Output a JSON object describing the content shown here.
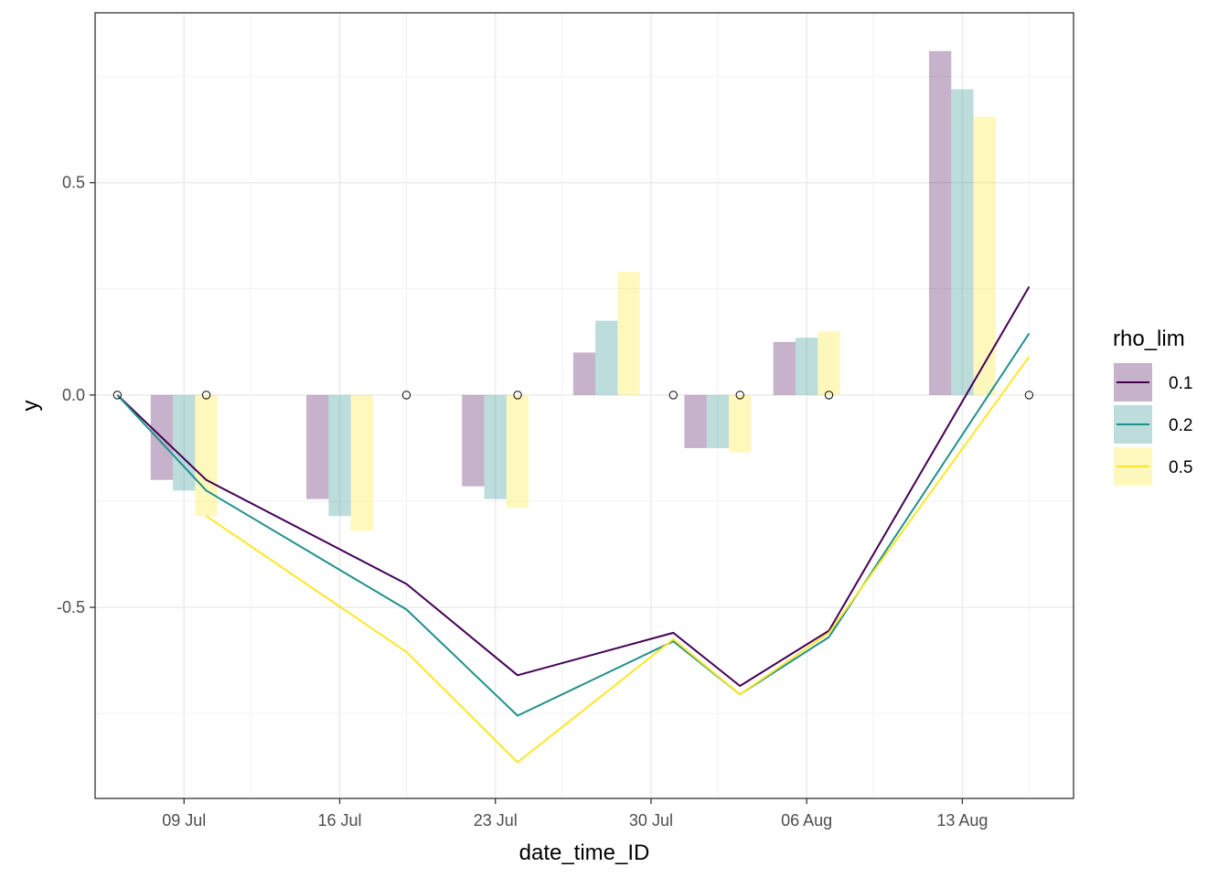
{
  "chart_data": {
    "type": "bar+line",
    "xlabel": "date_time_ID",
    "ylabel": "y",
    "x_axis": {
      "type": "date",
      "range": [
        "2024-07-05",
        "2024-08-18"
      ],
      "ticks": [
        {
          "date": "2024-07-09",
          "label": "09 Jul"
        },
        {
          "date": "2024-07-16",
          "label": "16 Jul"
        },
        {
          "date": "2024-07-23",
          "label": "23 Jul"
        },
        {
          "date": "2024-07-30",
          "label": "30 Jul"
        },
        {
          "date": "2024-08-06",
          "label": "06 Aug"
        },
        {
          "date": "2024-08-13",
          "label": "13 Aug"
        }
      ]
    },
    "y_axis": {
      "range": [
        -0.95,
        0.9
      ],
      "ticks": [
        {
          "value": 0.5,
          "label": "0.5"
        },
        {
          "value": 0.0,
          "label": "0.0"
        },
        {
          "value": -0.5,
          "label": "-0.5"
        }
      ],
      "minor": [
        -0.75,
        -0.25,
        0.25,
        0.75
      ]
    },
    "grid": true,
    "legend": {
      "title": "rho_lim",
      "position": "right",
      "items": [
        {
          "label": "0.1",
          "color": "#440154"
        },
        {
          "label": "0.2",
          "color": "#21908C"
        },
        {
          "label": "0.5",
          "color": "#FDE725"
        }
      ]
    },
    "series": [
      {
        "name": "0.1",
        "color": "#440154",
        "bars": [
          {
            "date": "2024-07-08",
            "value": -0.2
          },
          {
            "date": "2024-07-15",
            "value": -0.245
          },
          {
            "date": "2024-07-22",
            "value": -0.215
          },
          {
            "date": "2024-07-27",
            "value": 0.1
          },
          {
            "date": "2024-08-01",
            "value": -0.125
          },
          {
            "date": "2024-08-05",
            "value": 0.125
          },
          {
            "date": "2024-08-12",
            "value": 0.81
          }
        ],
        "line": [
          {
            "date": "2024-07-06",
            "value": 0.0
          },
          {
            "date": "2024-07-10",
            "value": -0.2
          },
          {
            "date": "2024-07-19",
            "value": -0.445
          },
          {
            "date": "2024-07-24",
            "value": -0.66
          },
          {
            "date": "2024-07-31",
            "value": -0.56
          },
          {
            "date": "2024-08-03",
            "value": -0.685
          },
          {
            "date": "2024-08-07",
            "value": -0.555
          },
          {
            "date": "2024-08-16",
            "value": 0.255
          }
        ]
      },
      {
        "name": "0.2",
        "color": "#21908C",
        "bars": [
          {
            "date": "2024-07-09",
            "value": -0.225
          },
          {
            "date": "2024-07-16",
            "value": -0.285
          },
          {
            "date": "2024-07-23",
            "value": -0.245
          },
          {
            "date": "2024-07-28",
            "value": 0.175
          },
          {
            "date": "2024-08-02",
            "value": -0.125
          },
          {
            "date": "2024-08-06",
            "value": 0.135
          },
          {
            "date": "2024-08-13",
            "value": 0.72
          }
        ],
        "line": [
          {
            "date": "2024-07-06",
            "value": 0.0
          },
          {
            "date": "2024-07-10",
            "value": -0.225
          },
          {
            "date": "2024-07-19",
            "value": -0.505
          },
          {
            "date": "2024-07-24",
            "value": -0.755
          },
          {
            "date": "2024-07-31",
            "value": -0.58
          },
          {
            "date": "2024-08-03",
            "value": -0.705
          },
          {
            "date": "2024-08-07",
            "value": -0.57
          },
          {
            "date": "2024-08-16",
            "value": 0.145
          }
        ]
      },
      {
        "name": "0.5",
        "color": "#FDE725",
        "bars": [
          {
            "date": "2024-07-10",
            "value": -0.285
          },
          {
            "date": "2024-07-17",
            "value": -0.32
          },
          {
            "date": "2024-07-24",
            "value": -0.265
          },
          {
            "date": "2024-07-29",
            "value": 0.29
          },
          {
            "date": "2024-08-03",
            "value": -0.135
          },
          {
            "date": "2024-08-07",
            "value": 0.15
          },
          {
            "date": "2024-08-14",
            "value": 0.655
          }
        ],
        "line": [
          {
            "date": "2024-07-10",
            "value": -0.285
          },
          {
            "date": "2024-07-19",
            "value": -0.605
          },
          {
            "date": "2024-07-24",
            "value": -0.865
          },
          {
            "date": "2024-07-31",
            "value": -0.575
          },
          {
            "date": "2024-08-03",
            "value": -0.705
          },
          {
            "date": "2024-08-07",
            "value": -0.56
          },
          {
            "date": "2024-08-16",
            "value": 0.09
          }
        ]
      }
    ],
    "points": [
      {
        "date": "2024-07-06",
        "value": 0.0
      },
      {
        "date": "2024-07-10",
        "value": 0.0
      },
      {
        "date": "2024-07-19",
        "value": 0.0
      },
      {
        "date": "2024-07-24",
        "value": 0.0
      },
      {
        "date": "2024-07-31",
        "value": 0.0
      },
      {
        "date": "2024-08-03",
        "value": 0.0
      },
      {
        "date": "2024-08-07",
        "value": 0.0
      },
      {
        "date": "2024-08-16",
        "value": 0.0
      }
    ]
  }
}
